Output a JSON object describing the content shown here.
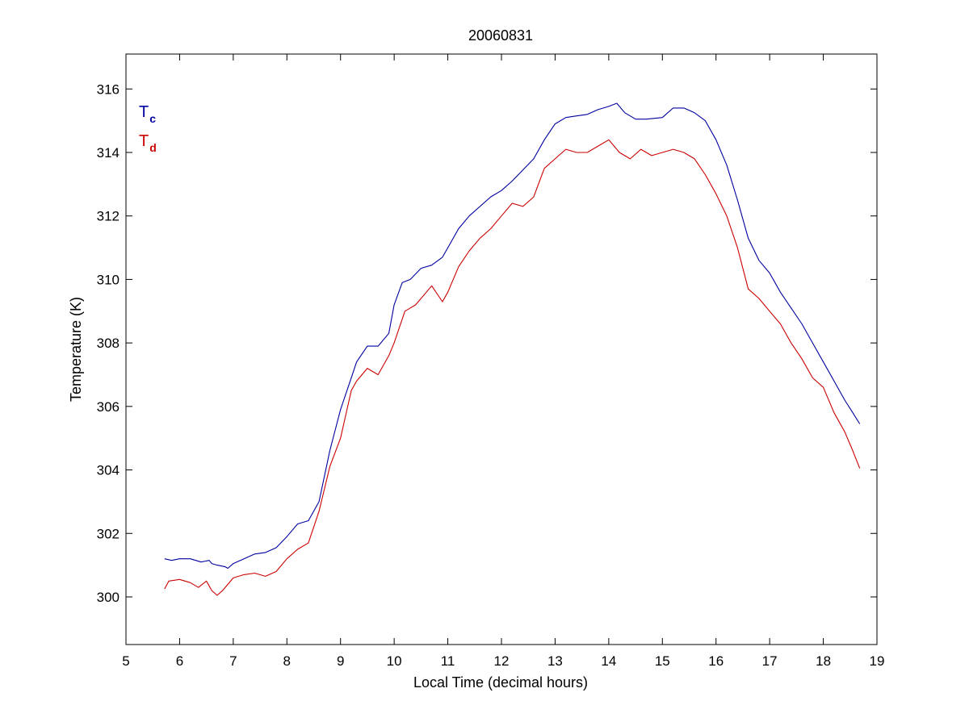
{
  "chart_data": {
    "type": "line",
    "title": "20060831",
    "xlabel": "Local Time (decimal hours)",
    "ylabel": "Temperature (K)",
    "xlim": [
      5,
      19
    ],
    "ylim": [
      298.5,
      317.1
    ],
    "xticks": [
      5,
      6,
      7,
      8,
      9,
      10,
      11,
      12,
      13,
      14,
      15,
      16,
      17,
      18,
      19
    ],
    "yticks": [
      300,
      302,
      304,
      306,
      308,
      310,
      312,
      314,
      316
    ],
    "grid": false,
    "legend_position": "top-left",
    "series": [
      {
        "name_main": "T",
        "name_sub": "c",
        "color": "#0000a0",
        "x": [
          5.72,
          5.85,
          6.0,
          6.2,
          6.4,
          6.55,
          6.6,
          6.7,
          6.85,
          6.9,
          7.0,
          7.2,
          7.4,
          7.6,
          7.8,
          8.0,
          8.2,
          8.4,
          8.6,
          8.8,
          9.0,
          9.2,
          9.3,
          9.5,
          9.7,
          9.9,
          10.0,
          10.15,
          10.3,
          10.5,
          10.7,
          10.9,
          11.0,
          11.2,
          11.4,
          11.6,
          11.8,
          12.0,
          12.2,
          12.4,
          12.6,
          12.8,
          13.0,
          13.2,
          13.4,
          13.6,
          13.8,
          14.0,
          14.15,
          14.3,
          14.5,
          14.7,
          15.0,
          15.2,
          15.4,
          15.6,
          15.8,
          16.0,
          16.2,
          16.4,
          16.6,
          16.8,
          17.0,
          17.2,
          17.4,
          17.6,
          17.8,
          18.0,
          18.2,
          18.4,
          18.55,
          18.68
        ],
        "y": [
          301.2,
          301.15,
          301.2,
          301.2,
          301.1,
          301.15,
          301.05,
          301.0,
          300.95,
          300.9,
          301.05,
          301.2,
          301.35,
          301.4,
          301.55,
          301.9,
          302.3,
          302.4,
          303.0,
          304.6,
          305.9,
          306.9,
          307.4,
          307.9,
          307.9,
          308.3,
          309.2,
          309.9,
          310.0,
          310.35,
          310.45,
          310.7,
          311.0,
          311.6,
          312.0,
          312.3,
          312.6,
          312.8,
          313.1,
          313.45,
          313.8,
          314.4,
          314.9,
          315.1,
          315.15,
          315.2,
          315.35,
          315.45,
          315.55,
          315.25,
          315.05,
          315.05,
          315.1,
          315.4,
          315.4,
          315.25,
          315.0,
          314.4,
          313.6,
          312.5,
          311.3,
          310.6,
          310.2,
          309.6,
          309.1,
          308.6,
          308.0,
          307.4,
          306.8,
          306.2,
          305.8,
          305.45
        ]
      },
      {
        "name_main": "T",
        "name_sub": "d",
        "color": "#cc0000",
        "x": [
          5.72,
          5.8,
          6.0,
          6.2,
          6.35,
          6.5,
          6.6,
          6.7,
          6.8,
          7.0,
          7.2,
          7.4,
          7.6,
          7.8,
          8.0,
          8.2,
          8.4,
          8.6,
          8.8,
          9.0,
          9.2,
          9.3,
          9.5,
          9.7,
          9.9,
          10.0,
          10.2,
          10.4,
          10.6,
          10.7,
          10.9,
          11.0,
          11.2,
          11.4,
          11.6,
          11.8,
          12.0,
          12.2,
          12.4,
          12.6,
          12.8,
          13.0,
          13.2,
          13.4,
          13.6,
          13.8,
          14.0,
          14.2,
          14.4,
          14.6,
          14.8,
          15.0,
          15.2,
          15.4,
          15.6,
          15.8,
          16.0,
          16.2,
          16.4,
          16.6,
          16.8,
          17.0,
          17.2,
          17.4,
          17.6,
          17.8,
          18.0,
          18.2,
          18.4,
          18.55,
          18.68
        ],
        "y": [
          300.25,
          300.5,
          300.55,
          300.45,
          300.3,
          300.5,
          300.2,
          300.05,
          300.2,
          300.6,
          300.7,
          300.75,
          300.65,
          300.8,
          301.2,
          301.5,
          301.7,
          302.7,
          304.1,
          305.0,
          306.5,
          306.8,
          307.2,
          307.0,
          307.6,
          308.0,
          309.0,
          309.2,
          309.6,
          309.8,
          309.3,
          309.6,
          310.4,
          310.9,
          311.3,
          311.6,
          312.0,
          312.4,
          312.3,
          312.6,
          313.5,
          313.8,
          314.1,
          314.0,
          314.0,
          314.2,
          314.4,
          314.0,
          313.8,
          314.1,
          313.9,
          314.0,
          314.1,
          314.0,
          313.8,
          313.3,
          312.7,
          312.0,
          311.0,
          309.7,
          309.4,
          309.0,
          308.6,
          308.0,
          307.5,
          306.9,
          306.6,
          305.8,
          305.2,
          304.6,
          304.05
        ]
      }
    ]
  }
}
